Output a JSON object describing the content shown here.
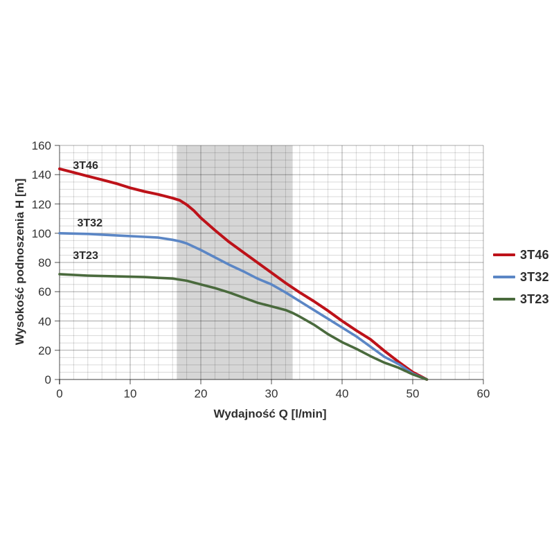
{
  "page": {
    "background": "#ffffff"
  },
  "chart_data": {
    "type": "line",
    "title": "",
    "xlabel": "Wydajność Q [l/min]",
    "ylabel": "Wysokość podnoszenia H [m]",
    "xlim": [
      0,
      60
    ],
    "ylim": [
      0,
      160
    ],
    "xticks": [
      0,
      10,
      20,
      30,
      40,
      50,
      60
    ],
    "yticks": [
      0,
      20,
      40,
      60,
      80,
      100,
      120,
      140,
      160
    ],
    "x_minor_step": 2,
    "y_minor_step": 5,
    "grid": "major+minor",
    "legend_position": "right",
    "band": {
      "from": 16.6,
      "to": 33,
      "color": "#d6d6d6"
    },
    "series": [
      {
        "name": "3T46",
        "color": "#bd1219",
        "stroke_width": 4,
        "annotation": {
          "q": 1.9,
          "h": 150
        },
        "points": [
          [
            0,
            144
          ],
          [
            2,
            141.5
          ],
          [
            4,
            139
          ],
          [
            6,
            136.5
          ],
          [
            8,
            134
          ],
          [
            10,
            131
          ],
          [
            12,
            128.5
          ],
          [
            14,
            126.5
          ],
          [
            16,
            124
          ],
          [
            17,
            122.5
          ],
          [
            18,
            119.5
          ],
          [
            19,
            115.5
          ],
          [
            20,
            110.5
          ],
          [
            22,
            102
          ],
          [
            24,
            94
          ],
          [
            26,
            87
          ],
          [
            28,
            80
          ],
          [
            30,
            73
          ],
          [
            32,
            66
          ],
          [
            34,
            59.5
          ],
          [
            36,
            53.5
          ],
          [
            38,
            47
          ],
          [
            40,
            40
          ],
          [
            42,
            33.5
          ],
          [
            44,
            27.5
          ],
          [
            46,
            19.5
          ],
          [
            48,
            12
          ],
          [
            50,
            5
          ],
          [
            51,
            2.5
          ],
          [
            52,
            0
          ]
        ]
      },
      {
        "name": "3T32",
        "color": "#5b86c5",
        "stroke_width": 3.6,
        "annotation": {
          "q": 2.5,
          "h": 111
        },
        "points": [
          [
            0,
            100
          ],
          [
            4,
            99.5
          ],
          [
            8,
            98.5
          ],
          [
            12,
            97.5
          ],
          [
            14,
            97
          ],
          [
            16,
            95.5
          ],
          [
            17,
            94.5
          ],
          [
            18,
            93
          ],
          [
            20,
            88.5
          ],
          [
            22,
            83.5
          ],
          [
            24,
            78.5
          ],
          [
            26,
            74
          ],
          [
            28,
            69
          ],
          [
            30,
            65
          ],
          [
            32,
            59.5
          ],
          [
            34,
            53.5
          ],
          [
            36,
            47.5
          ],
          [
            38,
            41.5
          ],
          [
            40,
            35.5
          ],
          [
            42,
            29.5
          ],
          [
            44,
            22.5
          ],
          [
            46,
            15.5
          ],
          [
            48,
            10.5
          ],
          [
            50,
            4
          ],
          [
            51,
            2
          ],
          [
            52,
            0
          ]
        ]
      },
      {
        "name": "3T23",
        "color": "#4a6a3d",
        "stroke_width": 3.6,
        "annotation": {
          "q": 1.9,
          "h": 88.5
        },
        "points": [
          [
            0,
            72
          ],
          [
            4,
            71
          ],
          [
            8,
            70.5
          ],
          [
            12,
            70
          ],
          [
            14,
            69.5
          ],
          [
            16,
            69
          ],
          [
            18,
            67.5
          ],
          [
            20,
            65
          ],
          [
            22,
            62.5
          ],
          [
            24,
            59.5
          ],
          [
            26,
            56
          ],
          [
            28,
            52.5
          ],
          [
            30,
            50
          ],
          [
            32,
            47.5
          ],
          [
            33,
            45.5
          ],
          [
            34,
            43
          ],
          [
            36,
            37.5
          ],
          [
            38,
            31
          ],
          [
            40,
            25.5
          ],
          [
            42,
            21
          ],
          [
            44,
            16
          ],
          [
            46,
            11.5
          ],
          [
            48,
            8
          ],
          [
            50,
            3.5
          ],
          [
            52,
            0
          ]
        ]
      }
    ]
  }
}
